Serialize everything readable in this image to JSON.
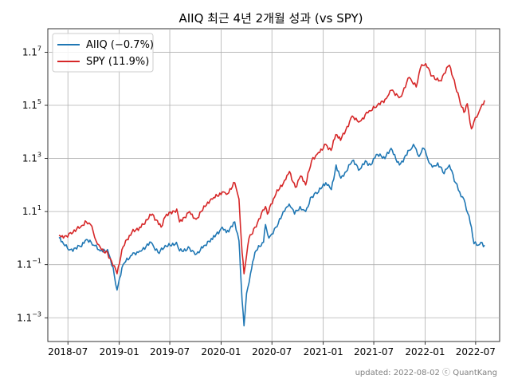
{
  "chart_data": {
    "type": "line",
    "title": "AIIQ 최근 4년 2개월 성과 (vs SPY)",
    "footer": "updated: 2022-08-02 ⓒ QuantKang",
    "y_scale": "log",
    "x_ticks": [
      "2018-07",
      "2019-01",
      "2019-07",
      "2020-01",
      "2020-07",
      "2021-01",
      "2021-07",
      "2022-01",
      "2022-07"
    ],
    "y_ticks": [
      {
        "base": "1.1",
        "exp": "7",
        "value": 1.9487
      },
      {
        "base": "1.1",
        "exp": "5",
        "value": 1.6105
      },
      {
        "base": "1.1",
        "exp": "3",
        "value": 1.331
      },
      {
        "base": "1.1",
        "exp": "1",
        "value": 1.1
      },
      {
        "base": "1.1",
        "exp": "−1",
        "value": 0.9091
      },
      {
        "base": "1.1",
        "exp": "−3",
        "value": 0.7513
      }
    ],
    "ylim": [
      0.69,
      2.12
    ],
    "grid": true,
    "legend_position": "top-left",
    "series": [
      {
        "name": "AIIQ (−0.7%)",
        "color": "#1f77b4",
        "x": [
          "2018-05-30",
          "2018-06-15",
          "2018-07-10",
          "2018-08-15",
          "2018-09-05",
          "2018-10-01",
          "2018-10-25",
          "2018-11-20",
          "2018-12-10",
          "2018-12-24",
          "2019-01-15",
          "2019-02-15",
          "2019-03-15",
          "2019-04-25",
          "2019-05-20",
          "2019-06-10",
          "2019-07-25",
          "2019-08-05",
          "2019-09-10",
          "2019-10-05",
          "2019-11-05",
          "2019-12-01",
          "2020-01-05",
          "2020-01-20",
          "2020-02-19",
          "2020-03-05",
          "2020-03-10",
          "2020-03-16",
          "2020-03-23",
          "2020-04-01",
          "2020-04-15",
          "2020-05-01",
          "2020-06-01",
          "2020-06-08",
          "2020-06-20",
          "2020-07-15",
          "2020-08-15",
          "2020-09-01",
          "2020-09-20",
          "2020-10-10",
          "2020-10-30",
          "2020-11-20",
          "2020-12-15",
          "2021-01-10",
          "2021-01-30",
          "2021-02-16",
          "2021-03-05",
          "2021-03-25",
          "2021-04-15",
          "2021-05-12",
          "2021-06-01",
          "2021-06-20",
          "2021-07-10",
          "2021-08-10",
          "2021-09-01",
          "2021-10-01",
          "2021-11-05",
          "2021-11-20",
          "2021-12-10",
          "2021-12-27",
          "2022-01-10",
          "2022-01-27",
          "2022-02-15",
          "2022-03-10",
          "2022-03-29",
          "2022-04-20",
          "2022-05-05",
          "2022-05-20",
          "2022-06-16",
          "2022-06-25",
          "2022-07-10",
          "2022-07-20",
          "2022-08-02"
        ],
        "y": [
          1.0,
          0.98,
          0.96,
          0.97,
          0.995,
          0.975,
          0.955,
          0.96,
          0.9,
          0.83,
          0.91,
          0.94,
          0.955,
          0.985,
          0.95,
          0.965,
          0.985,
          0.955,
          0.965,
          0.945,
          0.975,
          0.995,
          1.04,
          1.02,
          1.06,
          0.99,
          0.9,
          0.8,
          0.73,
          0.82,
          0.88,
          0.95,
          0.985,
          1.05,
          1.0,
          1.04,
          1.1,
          1.13,
          1.09,
          1.12,
          1.1,
          1.16,
          1.18,
          1.22,
          1.19,
          1.3,
          1.24,
          1.27,
          1.32,
          1.28,
          1.32,
          1.3,
          1.35,
          1.33,
          1.38,
          1.3,
          1.37,
          1.4,
          1.34,
          1.38,
          1.33,
          1.29,
          1.31,
          1.26,
          1.3,
          1.22,
          1.18,
          1.15,
          1.04,
          0.98,
          0.975,
          0.985,
          0.975
        ]
      },
      {
        "name": "SPY (11.9%)",
        "color": "#d62728",
        "x": [
          "2018-05-30",
          "2018-06-15",
          "2018-07-10",
          "2018-08-15",
          "2018-09-05",
          "2018-09-20",
          "2018-10-10",
          "2018-10-29",
          "2018-11-20",
          "2018-12-24",
          "2019-01-15",
          "2019-02-15",
          "2019-03-15",
          "2019-04-30",
          "2019-05-31",
          "2019-06-15",
          "2019-07-26",
          "2019-08-05",
          "2019-09-10",
          "2019-10-03",
          "2019-11-05",
          "2019-12-01",
          "2020-01-05",
          "2020-01-20",
          "2020-02-19",
          "2020-03-05",
          "2020-03-16",
          "2020-03-23",
          "2020-04-10",
          "2020-05-01",
          "2020-06-08",
          "2020-06-15",
          "2020-07-15",
          "2020-08-15",
          "2020-09-02",
          "2020-09-23",
          "2020-10-12",
          "2020-10-30",
          "2020-11-20",
          "2020-12-15",
          "2021-01-10",
          "2021-01-29",
          "2021-02-15",
          "2021-03-04",
          "2021-04-15",
          "2021-05-12",
          "2021-06-15",
          "2021-07-10",
          "2021-08-15",
          "2021-09-02",
          "2021-10-04",
          "2021-11-05",
          "2021-11-30",
          "2021-12-15",
          "2022-01-03",
          "2022-01-27",
          "2022-02-23",
          "2022-03-29",
          "2022-04-20",
          "2022-05-12",
          "2022-05-20",
          "2022-06-01",
          "2022-06-16",
          "2022-06-25",
          "2022-07-10",
          "2022-07-20",
          "2022-08-02"
        ],
        "y": [
          1.01,
          1.0,
          1.02,
          1.04,
          1.06,
          1.05,
          0.99,
          0.96,
          0.95,
          0.88,
          0.97,
          1.02,
          1.04,
          1.09,
          1.04,
          1.08,
          1.11,
          1.06,
          1.1,
          1.07,
          1.12,
          1.15,
          1.18,
          1.17,
          1.22,
          1.15,
          0.95,
          0.88,
          1.0,
          1.04,
          1.12,
          1.09,
          1.17,
          1.23,
          1.27,
          1.2,
          1.25,
          1.21,
          1.32,
          1.36,
          1.4,
          1.37,
          1.45,
          1.42,
          1.55,
          1.52,
          1.58,
          1.6,
          1.65,
          1.7,
          1.66,
          1.78,
          1.72,
          1.84,
          1.87,
          1.79,
          1.76,
          1.86,
          1.72,
          1.6,
          1.57,
          1.62,
          1.48,
          1.52,
          1.56,
          1.6,
          1.64
        ]
      }
    ]
  }
}
